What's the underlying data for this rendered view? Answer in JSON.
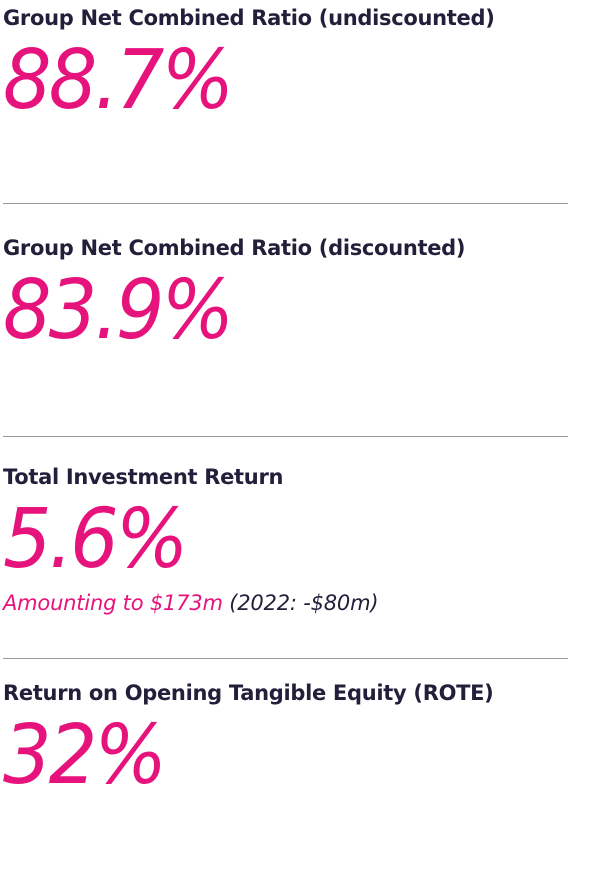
{
  "metrics": [
    {
      "label": "Group Net Combined Ratio (undiscounted)",
      "value": "88.7%"
    },
    {
      "label": "Group Net Combined Ratio (discounted)",
      "value": "83.9%"
    },
    {
      "label": "Total Investment Return",
      "value": "5.6%",
      "note_highlight": "Amounting to $173m",
      "note_comparison": "(2022: -$80m)"
    },
    {
      "label": "Return on Opening Tangible Equity (ROTE)",
      "value": "32%"
    }
  ],
  "colors": {
    "accent": "#e6137d",
    "text": "#221f3a",
    "divider": "#9a9a9a"
  }
}
